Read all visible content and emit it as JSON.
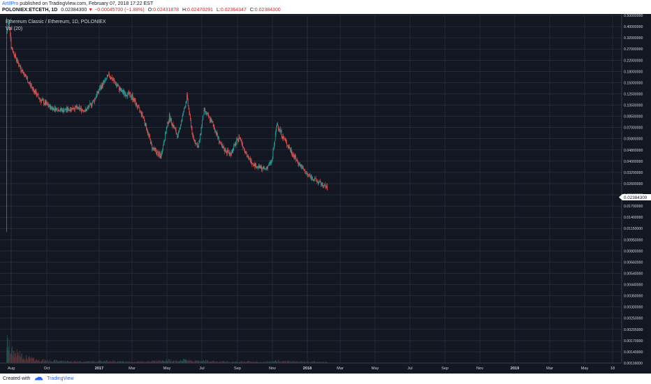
{
  "header": {
    "author": "ArtIlPro",
    "published_text": "published on TradingView.com, February 07, 2018 17:22 EST",
    "symbol": "POLONIEX:ETCETH, 1D",
    "last": "0.02384300",
    "change_arrow": "▼",
    "change": "−0.00045700 (−1.88%)",
    "o_label": "O:",
    "o_value": "0.02431878",
    "h_label": "H:",
    "h_value": "0.02470291",
    "l_label": "L:",
    "l_value": "0.02364347",
    "c_label": "C:",
    "c_value": "0.02384300"
  },
  "legend": {
    "title": "Ethereum Classic / Ethereum, 1D, POLONIEX",
    "volume": "Vol (20)"
  },
  "price_label": "0.02384300",
  "footer": {
    "created_with": "Created with",
    "brand": "TradingView",
    "logo_icon": "tradingview-logo-icon"
  },
  "colors": {
    "background": "#131722",
    "grid": "#363c4e",
    "up": "#26a69a",
    "down": "#ef5350",
    "axis_text": "#d1d4dc",
    "brand": "#2962ff"
  },
  "chart_data": {
    "type": "candlestick",
    "title": "Ethereum Classic / Ethereum, 1D, POLONIEX",
    "log_scale": true,
    "grid": true,
    "ylim": [
      0.0116,
      0.5
    ],
    "x_ticks": [
      "Aug",
      "Oct",
      "2017",
      "Mar",
      "May",
      "Jul",
      "Sep",
      "Nov",
      "2018",
      "Mar",
      "May",
      "Jul",
      "Sep",
      "Nov",
      "2019",
      "Mar",
      "May",
      "18"
    ],
    "y_ticks": [
      "0.50000000",
      "0.40000000",
      "0.32000000",
      "0.27000000",
      "0.22000000",
      "0.18000000",
      "0.15000000",
      "0.12500000",
      "0.10500000",
      "0.08500000",
      "0.07000000",
      "0.05800000",
      "0.04800000",
      "0.04000000",
      "0.03200000",
      "0.02600000",
      "0.02100000",
      "0.01700000",
      "0.01400000",
      "0.01150000",
      "0.00950000",
      "0.00800000",
      "0.00660000",
      "0.00540000",
      "0.00440000",
      "0.00360000",
      "0.00300000",
      "0.00250000",
      "0.00205000",
      "0.00170000",
      "0.00140000",
      "0.00116000"
    ],
    "series": [
      {
        "name": "ETCETH",
        "x": [
          "2016-07-24",
          "2016-07-28",
          "2016-08-01",
          "2016-08-15",
          "2016-09-01",
          "2016-09-20",
          "2016-10-10",
          "2016-11-01",
          "2016-11-20",
          "2016-12-10",
          "2016-12-25",
          "2017-01-05",
          "2017-01-20",
          "2017-02-10",
          "2017-03-01",
          "2017-03-20",
          "2017-04-05",
          "2017-04-20",
          "2017-05-05",
          "2017-05-20",
          "2017-06-05",
          "2017-06-15",
          "2017-06-25",
          "2017-07-05",
          "2017-07-20",
          "2017-08-05",
          "2017-08-20",
          "2017-09-05",
          "2017-09-20",
          "2017-10-05",
          "2017-10-20",
          "2017-11-01",
          "2017-11-10",
          "2017-11-20",
          "2017-12-01",
          "2017-12-15",
          "2018-01-01",
          "2018-01-15",
          "2018-01-25",
          "2018-02-07"
        ],
        "close": [
          0.35,
          0.45,
          0.28,
          0.2,
          0.15,
          0.115,
          0.1,
          0.095,
          0.1,
          0.095,
          0.115,
          0.14,
          0.17,
          0.13,
          0.12,
          0.085,
          0.05,
          0.043,
          0.085,
          0.06,
          0.12,
          0.06,
          0.05,
          0.095,
          0.075,
          0.05,
          0.045,
          0.06,
          0.042,
          0.036,
          0.034,
          0.04,
          0.075,
          0.06,
          0.05,
          0.04,
          0.031,
          0.028,
          0.026,
          0.0238
        ],
        "volume": [
          0.9,
          0.7,
          0.5,
          0.35,
          0.2,
          0.12,
          0.1,
          0.08,
          0.07,
          0.06,
          0.07,
          0.08,
          0.08,
          0.06,
          0.05,
          0.06,
          0.08,
          0.09,
          0.12,
          0.08,
          0.14,
          0.1,
          0.08,
          0.1,
          0.07,
          0.06,
          0.05,
          0.06,
          0.07,
          0.05,
          0.05,
          0.06,
          0.09,
          0.08,
          0.07,
          0.06,
          0.05,
          0.05,
          0.04,
          0.04
        ]
      }
    ]
  }
}
